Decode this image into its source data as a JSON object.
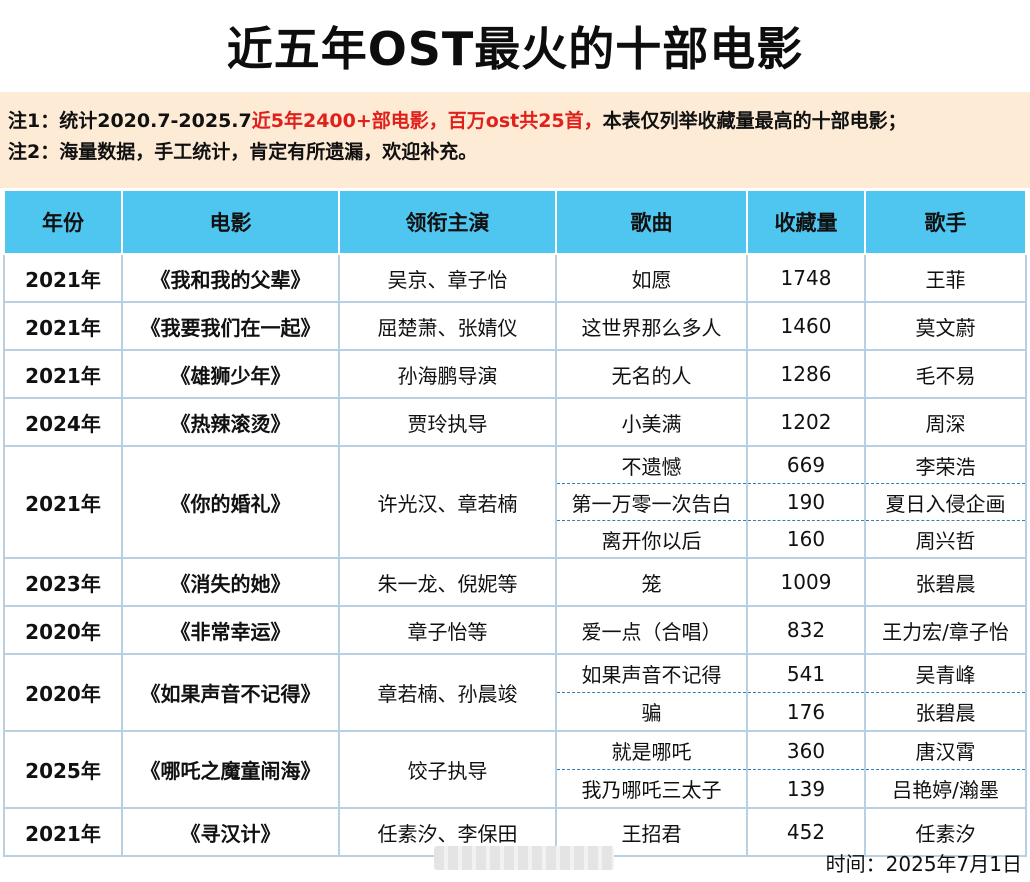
{
  "title": "近五年OST最火的十部电影",
  "notes": {
    "line1_prefix": "注1：统计2020.7-2025.7",
    "line1_red": "近5年2400+部电影，百万ost共25首，",
    "line1_suffix": "本表仅列举收藏量最高的十部电影；",
    "line2": "注2：海量数据，手工统计，肯定有所遗漏，欢迎补充。"
  },
  "headers": [
    "年份",
    "电影",
    "领衔主演",
    "歌曲",
    "收藏量",
    "歌手"
  ],
  "rows": [
    {
      "year": "2021年",
      "movie": "《我和我的父辈》",
      "cast": "吴京、章子怡",
      "songs": [
        {
          "song": "如愿",
          "count": "1748",
          "singer": "王菲"
        }
      ]
    },
    {
      "year": "2021年",
      "movie": "《我要我们在一起》",
      "cast": "屈楚萧、张婧仪",
      "songs": [
        {
          "song": "这世界那么多人",
          "count": "1460",
          "singer": "莫文蔚"
        }
      ]
    },
    {
      "year": "2021年",
      "movie": "《雄狮少年》",
      "cast": "孙海鹏导演",
      "songs": [
        {
          "song": "无名的人",
          "count": "1286",
          "singer": "毛不易"
        }
      ]
    },
    {
      "year": "2024年",
      "movie": "《热辣滚烫》",
      "cast": "贾玲执导",
      "songs": [
        {
          "song": "小美满",
          "count": "1202",
          "singer": "周深"
        }
      ]
    },
    {
      "year": "2021年",
      "movie": "《你的婚礼》",
      "cast": "许光汉、章若楠",
      "songs": [
        {
          "song": "不遗憾",
          "count": "669",
          "singer": "李荣浩"
        },
        {
          "song": "第一万零一次告白",
          "count": "190",
          "singer": "夏日入侵企画"
        },
        {
          "song": "离开你以后",
          "count": "160",
          "singer": "周兴哲"
        }
      ]
    },
    {
      "year": "2023年",
      "movie": "《消失的她》",
      "cast": "朱一龙、倪妮等",
      "songs": [
        {
          "song": "笼",
          "count": "1009",
          "singer": "张碧晨"
        }
      ]
    },
    {
      "year": "2020年",
      "movie": "《非常幸运》",
      "cast": "章子怡等",
      "songs": [
        {
          "song": "爱一点（合唱）",
          "count": "832",
          "singer": "王力宏/章子怡"
        }
      ]
    },
    {
      "year": "2020年",
      "movie": "《如果声音不记得》",
      "cast": "章若楠、孙晨竣",
      "songs": [
        {
          "song": "如果声音不记得",
          "count": "541",
          "singer": "吴青峰"
        },
        {
          "song": "骗",
          "count": "176",
          "singer": "张碧晨"
        }
      ]
    },
    {
      "year": "2025年",
      "movie": "《哪吒之魔童闹海》",
      "cast": "饺子执导",
      "songs": [
        {
          "song": "就是哪吒",
          "count": "360",
          "singer": "唐汉霄"
        },
        {
          "song": "我乃哪吒三太子",
          "count": "139",
          "singer": "吕艳婷/瀚墨"
        }
      ]
    },
    {
      "year": "2021年",
      "movie": "《寻汉计》",
      "cast": "任素汐、李保田",
      "songs": [
        {
          "song": "王招君",
          "count": "452",
          "singer": "任素汐"
        }
      ]
    }
  ],
  "footer": "时间：2025年7月1日"
}
